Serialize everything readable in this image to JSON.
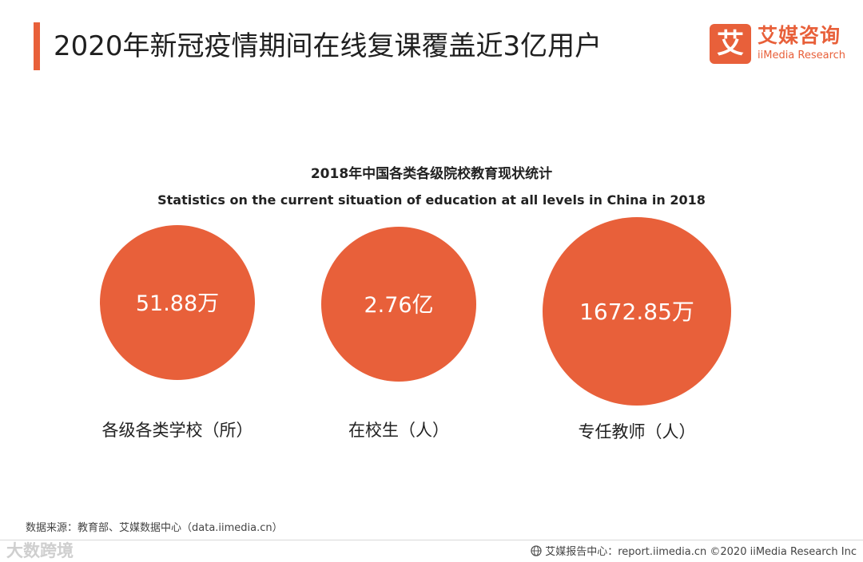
{
  "header": {
    "title": "2020年新冠疫情期间在线复课覆盖近3亿用户",
    "accent_color": "#e8603a"
  },
  "logo": {
    "mark": "艾",
    "cn": "艾媒咨询",
    "en": "iiMedia Research",
    "icon": "iimedia-logo-icon"
  },
  "chart_data": {
    "type": "bubble",
    "title": "2018年中国各类各级院校教育现状统计",
    "subtitle": "Statistics on the current situation of education at all levels in China in 2018",
    "bubble_color": "#e8603a",
    "items": [
      {
        "category": "各级各类学校（所）",
        "value_label": "51.88万",
        "value": 518800
      },
      {
        "category": "在校生（人）",
        "value_label": "2.76亿",
        "value": 276000000
      },
      {
        "category": "专任教师（人）",
        "value_label": "1672.85万",
        "value": 16728500
      }
    ]
  },
  "footer": {
    "source": "数据来源：教育部、艾媒数据中心（data.iimedia.cn）",
    "watermark": "大数跨境",
    "report_center": "艾媒报告中心：report.iimedia.cn  ©2020  iiMedia Research  Inc",
    "globe_icon": "globe-icon"
  }
}
